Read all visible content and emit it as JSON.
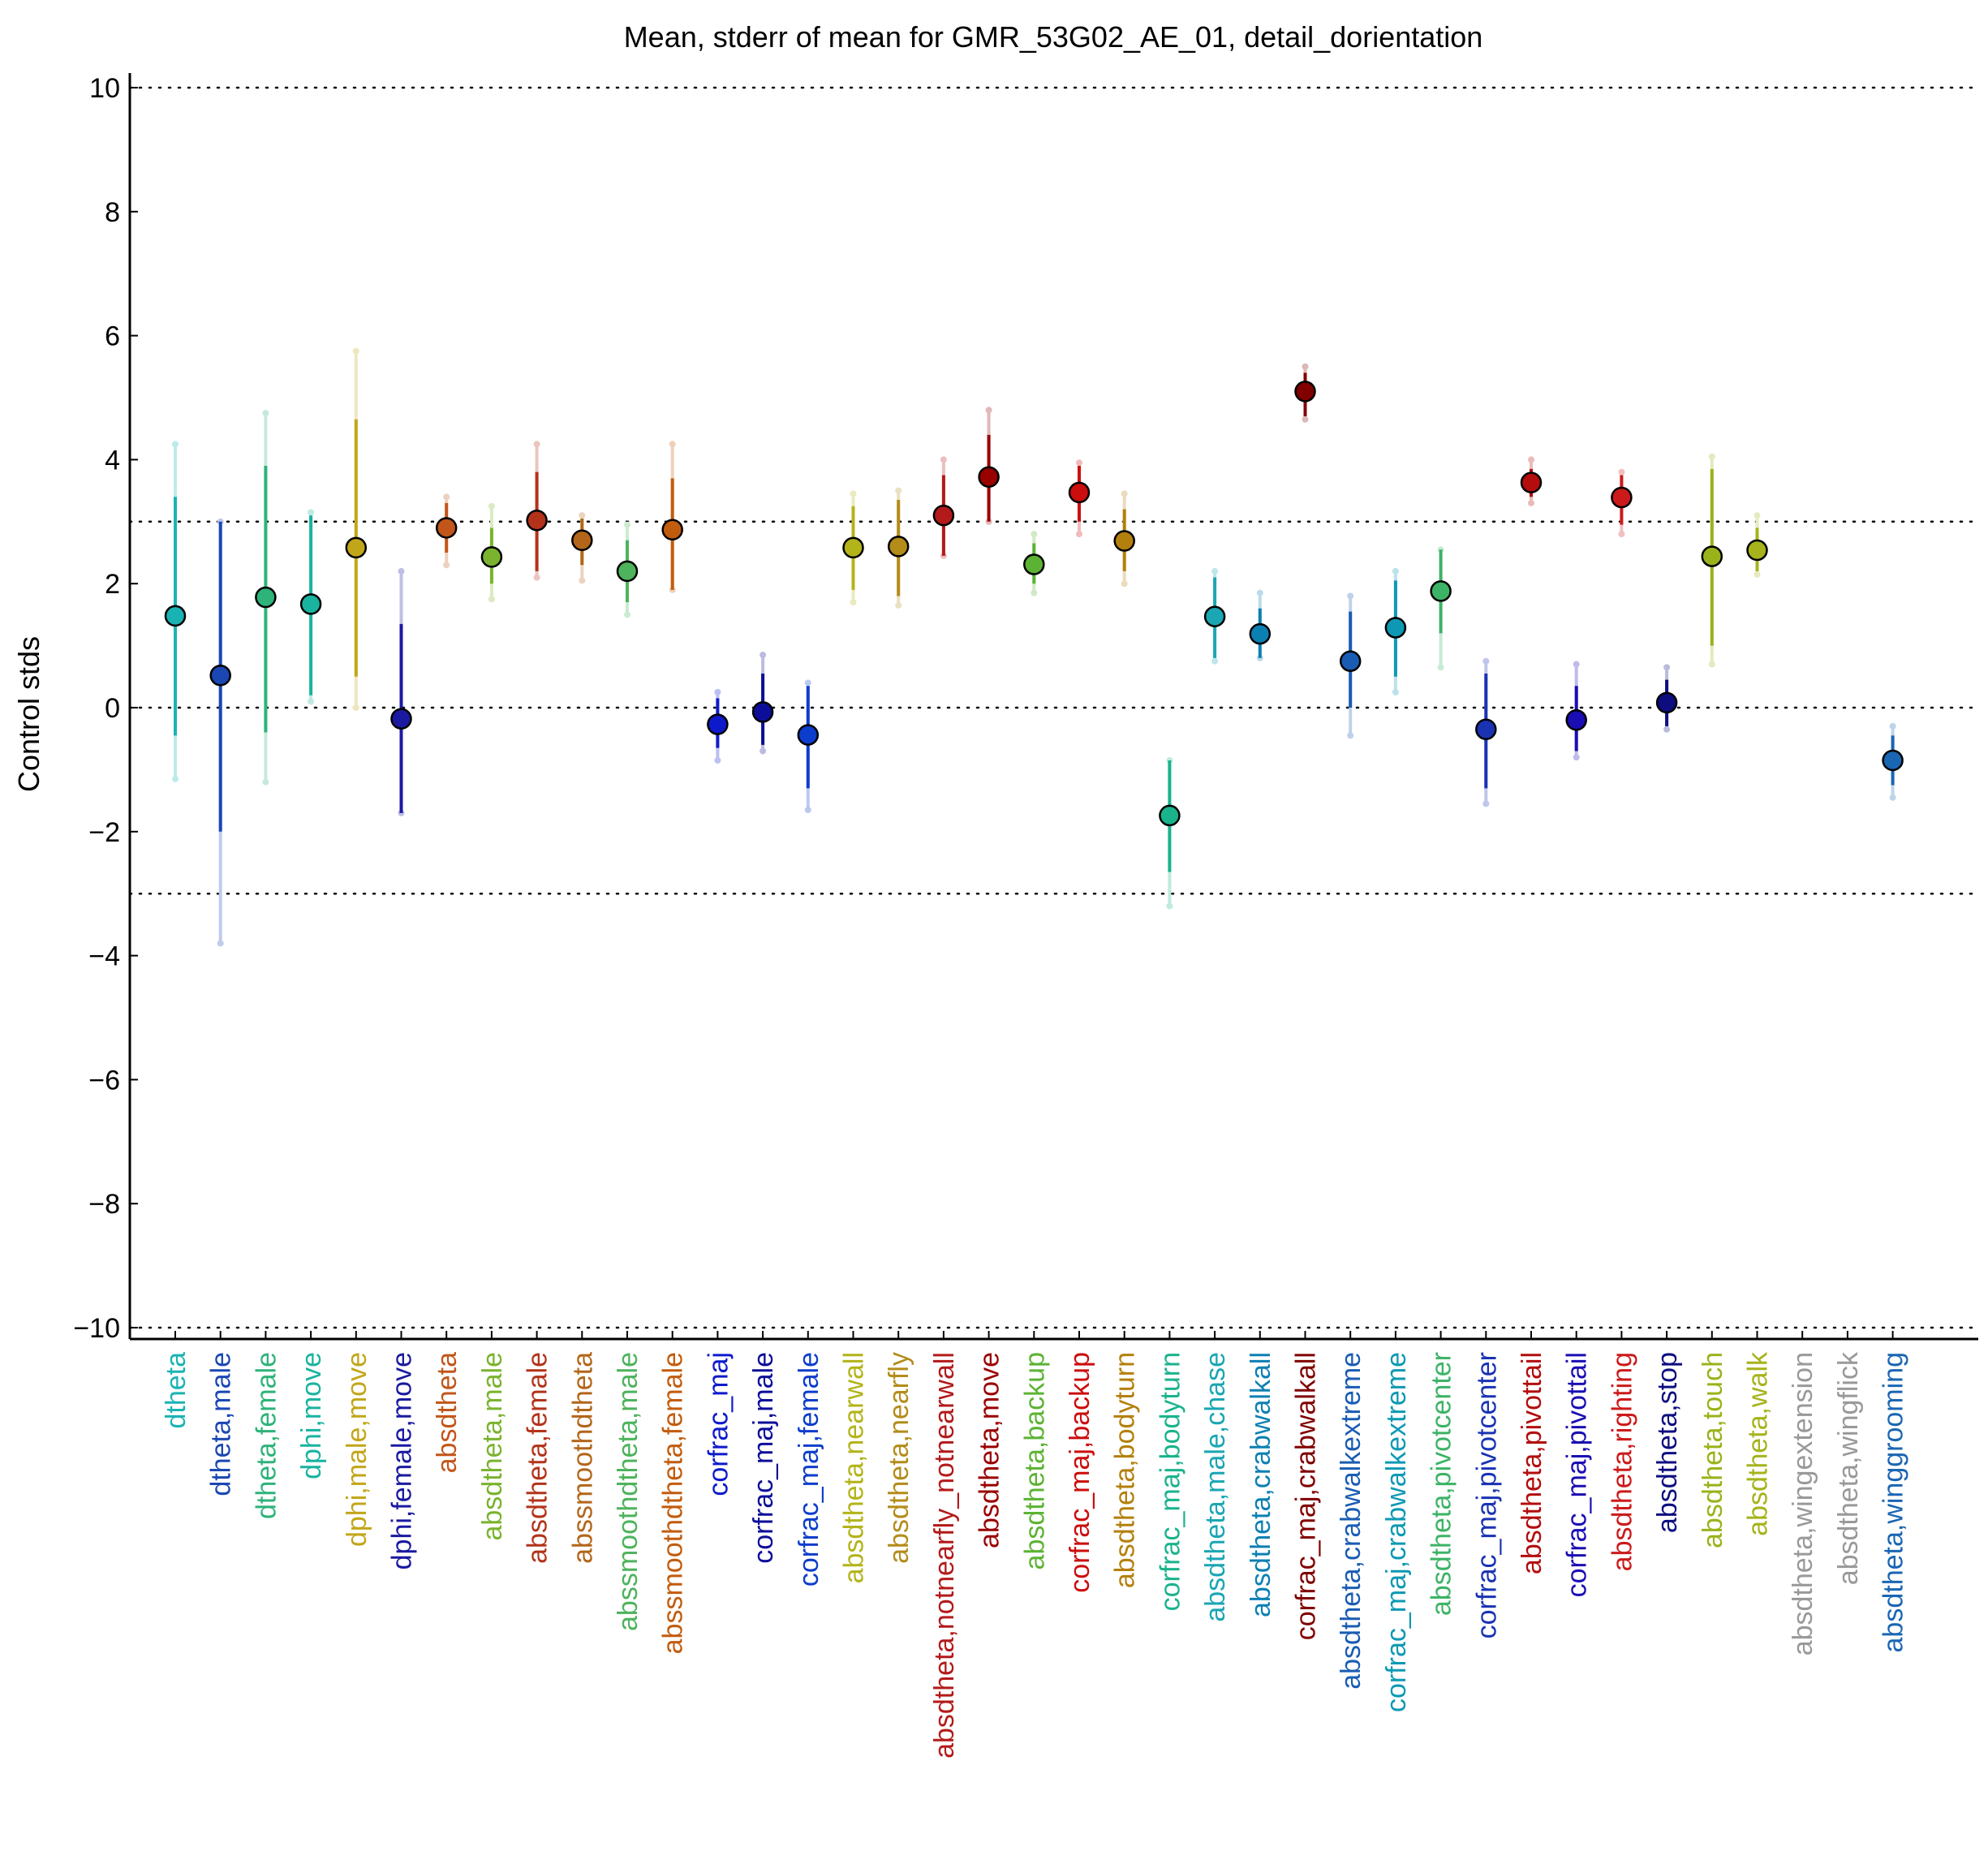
{
  "chart_data": {
    "type": "scatter",
    "title": "Mean, stderr of mean for GMR_53G02_AE_01, detail_dorientation",
    "ylabel": "Control stds",
    "xlabel": "",
    "ylim": [
      -10.2,
      10.2
    ],
    "yticks": [
      10,
      8,
      6,
      4,
      2,
      0,
      -2,
      -4,
      -6,
      -8,
      -10
    ],
    "ytick_labels": [
      "10",
      "8",
      "6",
      "4",
      "2",
      "0",
      "−2",
      "−4",
      "−6",
      "−8",
      "−10"
    ],
    "reference_lines": [
      10,
      3,
      0,
      -3,
      -10
    ],
    "grid": false,
    "categories": [
      "dtheta",
      "dtheta,male",
      "dtheta,female",
      "dphi,move",
      "dphi,male,move",
      "dphi,female,move",
      "absdtheta",
      "absdtheta,male",
      "absdtheta,female",
      "abssmoothdtheta",
      "abssmoothdtheta,male",
      "abssmoothdtheta,female",
      "corfrac_maj",
      "corfrac_maj,male",
      "corfrac_maj,female",
      "absdtheta,nearwall",
      "absdtheta,nearfly",
      "absdtheta,notnearfly_notnearwall",
      "absdtheta,move",
      "absdtheta,backup",
      "corfrac_maj,backup",
      "absdtheta,bodyturn",
      "corfrac_maj,bodyturn",
      "absdtheta,male,chase",
      "absdtheta,crabwalkall",
      "corfrac_maj,crabwalkall",
      "absdtheta,crabwalkextreme",
      "corfrac_maj,crabwalkextreme",
      "absdtheta,pivotcenter",
      "corfrac_maj,pivotcenter",
      "absdtheta,pivottail",
      "corfrac_maj,pivottail",
      "absdtheta,righting",
      "absdtheta,stop",
      "absdtheta,touch",
      "absdtheta,walk",
      "absdtheta,wingextension",
      "absdtheta,wingflick",
      "absdtheta,winggrooming"
    ],
    "colors": [
      "#1ab3b3",
      "#1a47b3",
      "#2eb37a",
      "#1ab3a0",
      "#c2a61a",
      "#1a1aa0",
      "#c2561a",
      "#7ab32e",
      "#b3331a",
      "#b3661a",
      "#4db35c",
      "#c25c0d",
      "#0d1acc",
      "#0d0d99",
      "#0d3dcc",
      "#b3b31a",
      "#b38c1a",
      "#b31a1a",
      "#990000",
      "#5cb333",
      "#cc0d0d",
      "#b3800d",
      "#1ab38c",
      "#1aa6b3",
      "#0d80b3",
      "#800000",
      "#1a5cb3",
      "#0d99b3",
      "#3db366",
      "#1a33b3",
      "#b30d0d",
      "#1a0db3",
      "#cc1a1a",
      "#0d0d80",
      "#99b31a",
      "#a6b31a",
      "#999999",
      "#999999",
      "#1a66b3"
    ],
    "means": [
      1.48,
      0.52,
      1.78,
      1.67,
      2.58,
      -0.18,
      2.9,
      2.43,
      3.02,
      2.7,
      2.2,
      2.87,
      -0.27,
      -0.07,
      -0.44,
      2.58,
      2.6,
      3.1,
      3.72,
      2.31,
      3.47,
      2.69,
      -1.74,
      1.47,
      1.19,
      5.1,
      0.75,
      1.29,
      1.88,
      -0.35,
      3.63,
      -0.2,
      3.39,
      0.08,
      2.44,
      2.54,
      null,
      null,
      -0.85
    ],
    "inner_low": [
      -0.45,
      -2.0,
      -0.4,
      0.2,
      0.5,
      -1.7,
      2.5,
      2.0,
      2.2,
      2.3,
      1.7,
      1.9,
      -0.65,
      -0.6,
      -1.3,
      1.9,
      1.8,
      2.45,
      3.0,
      2.0,
      3.0,
      2.2,
      -2.65,
      0.8,
      0.8,
      4.7,
      0.0,
      0.5,
      1.2,
      -1.3,
      3.4,
      -0.7,
      2.95,
      -0.3,
      1.0,
      2.2,
      null,
      null,
      -1.25
    ],
    "inner_high": [
      3.4,
      3.0,
      3.9,
      3.1,
      4.65,
      1.35,
      3.3,
      2.9,
      3.8,
      3.05,
      2.7,
      3.7,
      0.15,
      0.55,
      0.35,
      3.25,
      3.35,
      3.75,
      4.4,
      2.65,
      3.9,
      3.2,
      -0.85,
      2.1,
      1.6,
      5.4,
      1.55,
      2.05,
      2.55,
      0.55,
      3.85,
      0.35,
      3.75,
      0.45,
      3.85,
      2.9,
      null,
      null,
      -0.45
    ],
    "outer_low": [
      -1.15,
      -3.8,
      -1.2,
      0.1,
      0.0,
      -1.7,
      2.3,
      1.75,
      2.1,
      2.05,
      1.5,
      1.9,
      -0.85,
      -0.7,
      -1.65,
      1.7,
      1.65,
      2.45,
      3.0,
      1.85,
      2.8,
      2.0,
      -3.2,
      0.75,
      0.8,
      4.65,
      -0.45,
      0.25,
      0.65,
      -1.55,
      3.3,
      -0.8,
      2.8,
      -0.35,
      0.7,
      2.15,
      null,
      null,
      -1.45
    ],
    "outer_high": [
      4.25,
      3.0,
      4.75,
      3.15,
      5.75,
      2.2,
      3.4,
      3.25,
      4.25,
      3.1,
      2.95,
      4.25,
      0.25,
      0.85,
      0.4,
      3.45,
      3.5,
      4.0,
      4.8,
      2.8,
      3.95,
      3.45,
      -0.85,
      2.2,
      1.85,
      5.5,
      1.8,
      2.2,
      2.55,
      0.75,
      4.0,
      0.7,
      3.8,
      0.65,
      4.05,
      3.1,
      null,
      null,
      -0.3
    ]
  }
}
